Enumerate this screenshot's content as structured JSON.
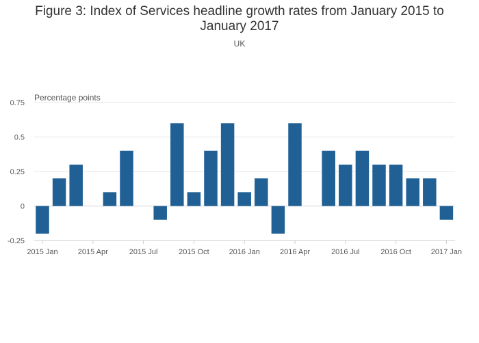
{
  "header": {
    "title": "Figure 3: Index of Services headline growth rates from January 2015 to January 2017",
    "subtitle": "UK"
  },
  "chart_data": {
    "type": "bar",
    "title": "Figure 3: Index of Services headline growth rates from January 2015 to January 2017",
    "subtitle": "UK",
    "ylabel": "Percentage points",
    "xlabel": "",
    "ylim": [
      -0.25,
      0.75
    ],
    "yticks": [
      -0.25,
      0,
      0.25,
      0.5,
      0.75
    ],
    "ytick_labels": [
      "-0.25",
      "0",
      "0.25",
      "0.5",
      "0.75"
    ],
    "grid": true,
    "color": "#206095",
    "categories": [
      "2015 Jan",
      "2015 Feb",
      "2015 Mar",
      "2015 Apr",
      "2015 May",
      "2015 Jun",
      "2015 Jul",
      "2015 Aug",
      "2015 Sep",
      "2015 Oct",
      "2015 Nov",
      "2015 Dec",
      "2016 Jan",
      "2016 Feb",
      "2016 Mar",
      "2016 Apr",
      "2016 May",
      "2016 Jun",
      "2016 Jul",
      "2016 Aug",
      "2016 Sep",
      "2016 Oct",
      "2016 Nov",
      "2016 Dec",
      "2017 Jan"
    ],
    "xtick_labels": [
      "2015 Jan",
      "2015 Apr",
      "2015 Jul",
      "2015 Oct",
      "2016 Jan",
      "2016 Apr",
      "2016 Jul",
      "2016 Oct",
      "2017 Jan"
    ],
    "values": [
      -0.2,
      0.2,
      0.3,
      0.0,
      0.1,
      0.4,
      0.0,
      -0.1,
      0.6,
      0.1,
      0.4,
      0.6,
      0.1,
      0.2,
      -0.2,
      0.6,
      0.0,
      0.4,
      0.3,
      0.4,
      0.3,
      0.3,
      0.2,
      0.2,
      -0.1
    ]
  }
}
